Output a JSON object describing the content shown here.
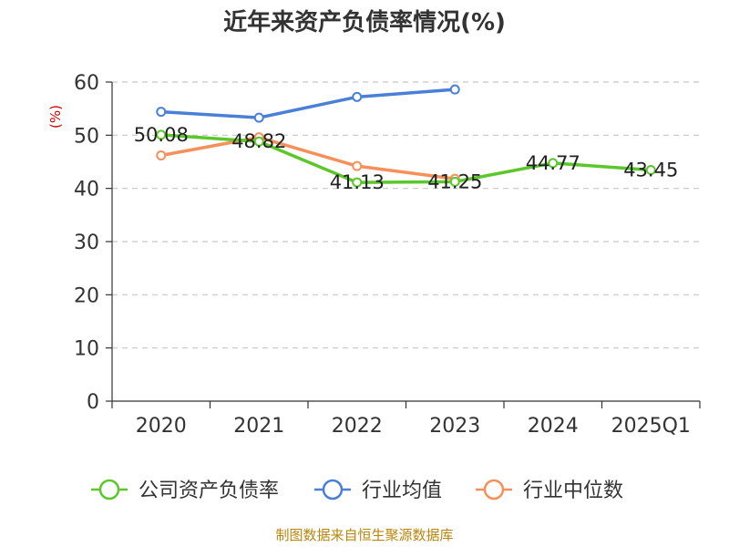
{
  "chart_data": {
    "type": "line",
    "title": "近年来资产负债率情况(%)",
    "ylabel": "(%)",
    "categories": [
      "2020",
      "2021",
      "2022",
      "2023",
      "2024",
      "2025Q1"
    ],
    "ylim": [
      0,
      60
    ],
    "yticks": [
      "0",
      "10",
      "20",
      "30",
      "40",
      "50",
      "60"
    ],
    "grid": true,
    "legend_position": "bottom",
    "series": [
      {
        "name": "公司资产负债率",
        "color": "#5cc72a",
        "values": [
          50.08,
          48.82,
          41.13,
          41.25,
          44.77,
          43.45
        ],
        "labels": [
          "50.08",
          "48.82",
          "41.13",
          "41.25",
          "44.77",
          "43.45"
        ]
      },
      {
        "name": "行业均值",
        "color": "#4a7fd8",
        "values": [
          54.4,
          53.3,
          57.2,
          58.6,
          null,
          null
        ]
      },
      {
        "name": "行业中位数",
        "color": "#f5905a",
        "values": [
          46.2,
          49.6,
          44.2,
          41.8,
          null,
          null
        ]
      }
    ]
  },
  "source": "制图数据来自恒生聚源数据库"
}
